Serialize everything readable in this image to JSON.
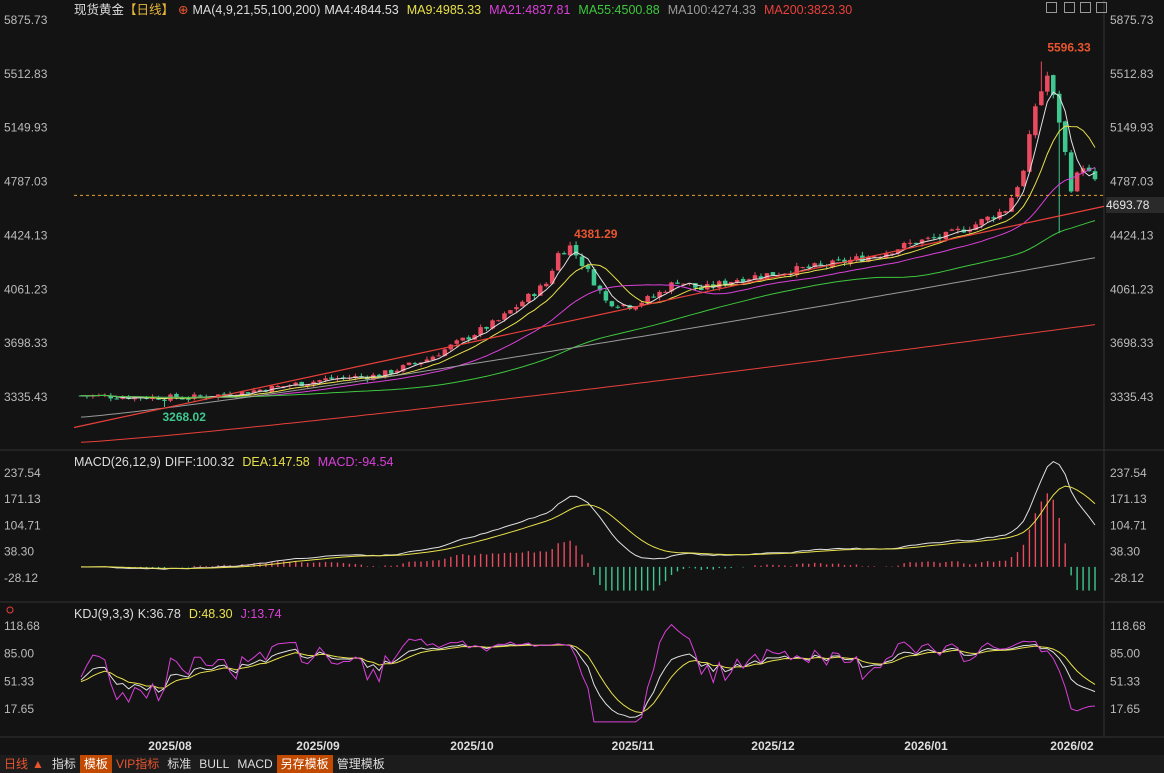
{
  "header": {
    "instrument": "现货黄金",
    "period_tag": "【日线】",
    "ma_params": "MA(4,9,21,55,100,200)",
    "ma_values": [
      {
        "label": "MA4:4844.53",
        "color": "#e0e0e0"
      },
      {
        "label": "MA9:4985.33",
        "color": "#e8e04a"
      },
      {
        "label": "MA21:4837.81",
        "color": "#d940d9"
      },
      {
        "label": "MA55:4500.88",
        "color": "#3ec83e"
      },
      {
        "label": "MA100:4274.33",
        "color": "#9a9a9a"
      },
      {
        "label": "MA200:3823.30",
        "color": "#e8403a"
      }
    ]
  },
  "macd_header": {
    "label": "MACD(26,12,9)",
    "diff": "DIFF:100.32",
    "dea": "DEA:147.58",
    "macd": "MACD:-94.54"
  },
  "kdj_header": {
    "label": "KDJ(9,3,3)",
    "k": "K:36.78",
    "d": "D:48.30",
    "j": "J:13.74"
  },
  "current_price_label": "4693.78",
  "bottom_bar": {
    "period": "日线",
    "tabs": [
      "指标",
      "模板",
      "VIP指标",
      "标准",
      "BULL",
      "MACD",
      "另存模板",
      "管理模板"
    ]
  },
  "chart_data": [
    {
      "type": "candlestick",
      "name": "price",
      "y_ticks": [
        "5875.73",
        "5512.83",
        "5149.93",
        "4787.03",
        "4424.13",
        "4061.23",
        "3698.33",
        "3335.43"
      ],
      "ylim": [
        3100,
        5900
      ],
      "x_ticks": [
        "2025/08",
        "2025/09",
        "2025/10",
        "2025/11",
        "2025/12",
        "2026/01",
        "2026/02"
      ],
      "annotations": {
        "high": "5596.33",
        "low": "3268.02",
        "peak": "4381.29"
      },
      "current_price": 4693.78,
      "colors": {
        "up": "#e84a5f",
        "down": "#3ec88f"
      }
    },
    {
      "type": "line",
      "name": "MACD",
      "y_ticks": [
        "237.54",
        "171.13",
        "104.71",
        "38.30",
        "-28.12"
      ],
      "ylim": [
        -60,
        250
      ]
    },
    {
      "type": "line",
      "name": "KDJ",
      "y_ticks": [
        "118.68",
        "85.00",
        "51.33",
        "17.65"
      ],
      "ylim": [
        0,
        125
      ]
    }
  ]
}
